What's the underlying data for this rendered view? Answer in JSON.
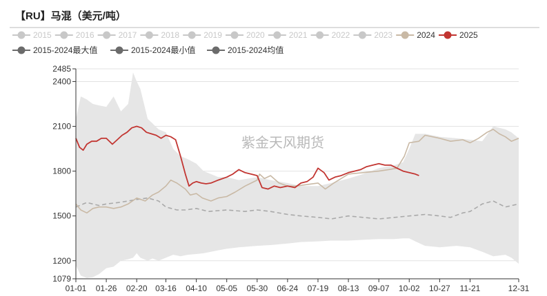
{
  "title": "【RU】马混（美元/吨）",
  "watermark": "紫金天风期货",
  "legend": {
    "row1": [
      {
        "label": "2015",
        "color": "#c8c8c8",
        "active": false
      },
      {
        "label": "2016",
        "color": "#c8c8c8",
        "active": false
      },
      {
        "label": "2017",
        "color": "#c8c8c8",
        "active": false
      },
      {
        "label": "2018",
        "color": "#c8c8c8",
        "active": false
      },
      {
        "label": "2019",
        "color": "#c8c8c8",
        "active": false
      },
      {
        "label": "2020",
        "color": "#c8c8c8",
        "active": false
      },
      {
        "label": "2021",
        "color": "#c8c8c8",
        "active": false
      },
      {
        "label": "2022",
        "color": "#c8c8c8",
        "active": false
      },
      {
        "label": "2023",
        "color": "#c8c8c8",
        "active": false
      },
      {
        "label": "2024",
        "color": "#c9b9a5",
        "active": true
      },
      {
        "label": "2025",
        "color": "#c23531",
        "active": true
      }
    ],
    "row2": [
      {
        "label": "2015-2024最大值",
        "color": "#6b6b6b"
      },
      {
        "label": "2015-2024最小值",
        "color": "#6b6b6b"
      },
      {
        "label": "2015-2024均值",
        "color": "#6b6b6b"
      }
    ]
  },
  "chart_data": {
    "type": "line",
    "title": "【RU】马混（美元/吨）",
    "x_ticks": [
      "01-01",
      "01-26",
      "02-20",
      "03-16",
      "04-10",
      "05-05",
      "05-30",
      "06-24",
      "07-19",
      "08-13",
      "09-07",
      "10-02",
      "10-27",
      "11-21",
      "12-31"
    ],
    "y_ticks": [
      2485,
      2400,
      2100,
      1800,
      1500,
      1200,
      1079
    ],
    "ylim": [
      1079,
      2485
    ],
    "gridlines": "horizontal",
    "band": {
      "name_max": "2015-2024最大值",
      "name_min": "2015-2024最小值",
      "color": "#e6e6e6",
      "x": [
        "01-01",
        "01-05",
        "01-10",
        "01-15",
        "01-20",
        "01-26",
        "02-01",
        "02-07",
        "02-13",
        "02-17",
        "02-20",
        "02-23",
        "03-01",
        "03-05",
        "03-10",
        "03-16",
        "03-22",
        "03-28",
        "04-03",
        "04-10",
        "04-16",
        "04-22",
        "04-28",
        "05-05",
        "05-15",
        "05-30",
        "06-10",
        "06-24",
        "07-05",
        "07-19",
        "07-30",
        "08-13",
        "08-25",
        "09-07",
        "09-20",
        "09-27",
        "10-02",
        "10-07",
        "10-15",
        "10-27",
        "11-10",
        "11-21",
        "12-01",
        "12-10",
        "12-20",
        "12-25",
        "12-31"
      ],
      "max": [
        2150,
        2300,
        2280,
        2250,
        2240,
        2230,
        2300,
        2200,
        2250,
        2460,
        2400,
        2350,
        2150,
        2120,
        2080,
        2060,
        1950,
        1900,
        1880,
        1850,
        1800,
        1780,
        1760,
        1760,
        1740,
        1760,
        1740,
        1720,
        1700,
        1700,
        1720,
        1750,
        1780,
        1820,
        1840,
        1860,
        1950,
        2050,
        2050,
        2030,
        2020,
        2010,
        2000,
        2100,
        2080,
        2060,
        2020
      ],
      "min": [
        1170,
        1100,
        1085,
        1090,
        1110,
        1150,
        1160,
        1200,
        1210,
        1220,
        1250,
        1220,
        1200,
        1215,
        1200,
        1220,
        1240,
        1230,
        1240,
        1245,
        1250,
        1260,
        1270,
        1280,
        1290,
        1300,
        1305,
        1315,
        1325,
        1330,
        1335,
        1335,
        1340,
        1345,
        1345,
        1350,
        1350,
        1330,
        1300,
        1290,
        1300,
        1290,
        1260,
        1230,
        1240,
        1220,
        1180
      ]
    },
    "series": [
      {
        "name": "2024",
        "color": "#c9b9a5",
        "x": [
          "01-01",
          "01-05",
          "01-10",
          "01-15",
          "01-20",
          "01-26",
          "02-01",
          "02-07",
          "02-13",
          "02-20",
          "02-27",
          "03-05",
          "03-10",
          "03-16",
          "03-20",
          "03-25",
          "04-01",
          "04-05",
          "04-10",
          "04-15",
          "04-22",
          "04-28",
          "05-05",
          "05-12",
          "05-20",
          "05-30",
          "06-01",
          "06-05",
          "06-10",
          "06-17",
          "06-24",
          "07-01",
          "07-10",
          "07-19",
          "07-25",
          "08-01",
          "08-13",
          "08-25",
          "09-07",
          "09-15",
          "09-22",
          "09-28",
          "10-02",
          "10-10",
          "10-15",
          "10-27",
          "11-05",
          "11-15",
          "11-21",
          "11-28",
          "12-05",
          "12-10",
          "12-15",
          "12-20",
          "12-25",
          "12-31"
        ],
        "values": [
          1580,
          1540,
          1520,
          1550,
          1560,
          1560,
          1550,
          1560,
          1580,
          1620,
          1600,
          1640,
          1660,
          1700,
          1740,
          1720,
          1680,
          1640,
          1650,
          1620,
          1600,
          1620,
          1630,
          1660,
          1700,
          1740,
          1780,
          1750,
          1770,
          1720,
          1700,
          1700,
          1710,
          1720,
          1680,
          1720,
          1780,
          1790,
          1800,
          1810,
          1820,
          1900,
          1990,
          2000,
          2040,
          2020,
          2000,
          2010,
          1990,
          2020,
          2060,
          2080,
          2050,
          2030,
          2000,
          2020
        ]
      },
      {
        "name": "2025",
        "color": "#c23531",
        "x": [
          "01-01",
          "01-04",
          "01-07",
          "01-10",
          "01-14",
          "01-18",
          "01-22",
          "01-26",
          "01-31",
          "02-04",
          "02-08",
          "02-12",
          "02-16",
          "02-20",
          "02-24",
          "02-28",
          "03-04",
          "03-08",
          "03-12",
          "03-16",
          "03-20",
          "03-24",
          "03-28",
          "04-01",
          "04-04",
          "04-07",
          "04-10",
          "04-14",
          "04-18",
          "04-22",
          "04-28",
          "05-05",
          "05-10",
          "05-15",
          "05-20",
          "05-25",
          "05-30",
          "06-03",
          "06-08",
          "06-13",
          "06-18",
          "06-24",
          "06-30",
          "07-05",
          "07-10",
          "07-15",
          "07-19",
          "07-24",
          "07-28",
          "08-02",
          "08-07",
          "08-13",
          "08-18",
          "08-23",
          "08-28",
          "09-02",
          "09-07",
          "09-12",
          "09-17",
          "09-22",
          "09-27",
          "10-02",
          "10-07",
          "10-10"
        ],
        "values": [
          2020,
          1960,
          1940,
          1980,
          2000,
          2000,
          2020,
          2020,
          1980,
          2010,
          2040,
          2060,
          2090,
          2100,
          2090,
          2060,
          2050,
          2040,
          2020,
          2040,
          2030,
          2010,
          1900,
          1780,
          1700,
          1720,
          1730,
          1720,
          1715,
          1720,
          1740,
          1760,
          1780,
          1810,
          1790,
          1780,
          1770,
          1690,
          1680,
          1700,
          1690,
          1700,
          1690,
          1720,
          1730,
          1760,
          1820,
          1790,
          1740,
          1760,
          1770,
          1790,
          1800,
          1810,
          1830,
          1840,
          1850,
          1840,
          1840,
          1820,
          1800,
          1790,
          1780,
          1770
        ]
      },
      {
        "name": "2015-2024均值",
        "color": "#a9a9a9",
        "dashed": true,
        "x": [
          "01-01",
          "01-10",
          "01-20",
          "01-26",
          "02-05",
          "02-13",
          "02-20",
          "03-01",
          "03-10",
          "03-16",
          "03-25",
          "04-01",
          "04-10",
          "04-20",
          "05-05",
          "05-20",
          "05-30",
          "06-10",
          "06-24",
          "07-05",
          "07-19",
          "07-30",
          "08-13",
          "08-25",
          "09-07",
          "09-20",
          "10-02",
          "10-15",
          "10-27",
          "11-05",
          "11-15",
          "11-21",
          "12-01",
          "12-10",
          "12-20",
          "12-31"
        ],
        "values": [
          1560,
          1590,
          1570,
          1580,
          1590,
          1600,
          1610,
          1620,
          1600,
          1560,
          1540,
          1540,
          1550,
          1530,
          1540,
          1530,
          1540,
          1530,
          1510,
          1500,
          1490,
          1480,
          1500,
          1490,
          1480,
          1490,
          1500,
          1510,
          1500,
          1490,
          1520,
          1530,
          1580,
          1600,
          1560,
          1580
        ]
      }
    ]
  }
}
